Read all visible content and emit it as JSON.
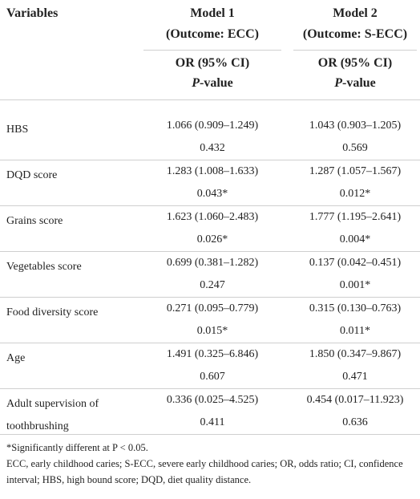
{
  "table": {
    "header": {
      "variables": "Variables",
      "models": [
        {
          "name": "Model 1",
          "outcome": "(Outcome: ECC)",
          "stat": "OR (95% CI)",
          "p_label": "P-value"
        },
        {
          "name": "Model 2",
          "outcome": "(Outcome: S-ECC)",
          "stat": "OR (95% CI)",
          "p_label": "P-value"
        }
      ]
    },
    "rows": [
      {
        "variable": "HBS",
        "cells": [
          [
            "1.066 (0.909–1.249)",
            "0.432"
          ],
          [
            "1.043 (0.903–1.205)",
            "0.569"
          ]
        ]
      },
      {
        "variable": "DQD score",
        "cells": [
          [
            "1.283 (1.008–1.633)",
            "0.043*"
          ],
          [
            "1.287 (1.057–1.567)",
            "0.012*"
          ]
        ]
      },
      {
        "variable": "Grains score",
        "cells": [
          [
            "1.623 (1.060–2.483)",
            "0.026*"
          ],
          [
            "1.777 (1.195–2.641)",
            "0.004*"
          ]
        ]
      },
      {
        "variable": "Vegetables score",
        "cells": [
          [
            "0.699 (0.381–1.282)",
            "0.247"
          ],
          [
            "0.137 (0.042–0.451)",
            "0.001*"
          ]
        ]
      },
      {
        "variable": "Food diversity score",
        "cells": [
          [
            "0.271 (0.095–0.779)",
            "0.015*"
          ],
          [
            "0.315 (0.130–0.763)",
            "0.011*"
          ]
        ]
      },
      {
        "variable": "Age",
        "cells": [
          [
            "1.491 (0.325–6.846)",
            "0.607"
          ],
          [
            "1.850 (0.347–9.867)",
            "0.471"
          ]
        ]
      },
      {
        "variable": "Adult supervision of toothbrushing",
        "cells": [
          [
            "0.336 (0.025–4.525)",
            "0.411"
          ],
          [
            "0.454 (0.017–11.923)",
            "0.636"
          ]
        ]
      }
    ]
  },
  "footnotes": [
    "*Significantly different at P < 0.05.",
    "ECC, early childhood caries; S-ECC, severe early childhood caries; OR, odds ratio; CI, confidence interval; HBS, high bound score; DQD, diet quality distance."
  ]
}
